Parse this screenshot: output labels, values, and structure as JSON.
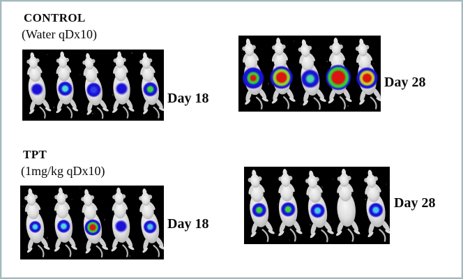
{
  "figure": {
    "border_color": "#a4b9bc",
    "background": "#ffffff",
    "panel_background": "#000000",
    "text_color": "#0a0a0a",
    "description": "Bioluminescence imaging of tumor-bearing mice, 5 mice per panel"
  },
  "signal_palette": {
    "low": "#1b12d8",
    "mid_cyan": "#49d8e0",
    "mid_green": "#35cc35",
    "mid_yellow": "#c8cc25",
    "high": "#dd1510"
  },
  "groups": [
    {
      "title": "CONTROL",
      "subtitle": "(Water qDx10)",
      "panels": [
        {
          "day_label": "Day 18",
          "mice": [
            {
              "signal": {
                "r": 10,
                "rings": [
                  "#1b12d8"
                ]
              }
            },
            {
              "signal": {
                "r": 11,
                "rings": [
                  "#1b12d8",
                  "#49e0d8"
                ]
              }
            },
            {
              "signal": {
                "r": 11,
                "rings": [
                  "#1b12d8",
                  "#2f3fe8"
                ]
              }
            },
            {
              "signal": {
                "r": 10,
                "rings": [
                  "#1b12d8"
                ]
              }
            },
            {
              "signal": {
                "r": 11,
                "rings": [
                  "#1b12d8",
                  "#3bd83b"
                ]
              }
            }
          ]
        },
        {
          "day_label": "Day 28",
          "mice": [
            {
              "signal": {
                "r": 16,
                "rings": [
                  "#1b12d8",
                  "#35cc35",
                  "#dd1510"
                ],
                "core": 0.2
              }
            },
            {
              "signal": {
                "r": 17,
                "rings": [
                  "#1b12d8",
                  "#8fd22a",
                  "#dd1510"
                ],
                "core": 0.38
              }
            },
            {
              "signal": {
                "r": 14,
                "rings": [
                  "#1b12d8",
                  "#45d8a0"
                ]
              }
            },
            {
              "signal": {
                "r": 19,
                "rings": [
                  "#1b12d8",
                  "#35cc35",
                  "#dd1510"
                ],
                "core": 0.45
              }
            },
            {
              "signal": {
                "r": 16,
                "rings": [
                  "#1b12d8",
                  "#c8cc25",
                  "#dd1510"
                ],
                "core": 0.33
              }
            }
          ]
        }
      ]
    },
    {
      "title": "TPT",
      "subtitle": "(1mg/kg qDx10)",
      "panels": [
        {
          "day_label": "Day 18",
          "mice": [
            {
              "signal": {
                "r": 9,
                "rings": [
                  "#1b12d8",
                  "#49d8e0"
                ]
              }
            },
            {
              "signal": {
                "r": 10,
                "rings": [
                  "#1b12d8",
                  "#49d8e0"
                ]
              }
            },
            {
              "signal": {
                "r": 12,
                "rings": [
                  "#1b12d8",
                  "#35cc35",
                  "#dd1510"
                ],
                "core": 0.3
              }
            },
            {
              "signal": {
                "r": 10,
                "rings": [
                  "#1b12d8"
                ]
              }
            },
            {
              "signal": {
                "r": 10,
                "rings": [
                  "#1b12d8",
                  "#4fc0e8"
                ]
              }
            }
          ]
        },
        {
          "day_label": "Day 28",
          "mice": [
            {
              "signal": {
                "r": 11,
                "rings": [
                  "#1b12d8",
                  "#3bd83b"
                ]
              }
            },
            {
              "signal": {
                "r": 11,
                "rings": [
                  "#1b12d8",
                  "#3bd83b"
                ]
              }
            },
            {
              "signal": {
                "r": 11,
                "rings": [
                  "#1b12d8",
                  "#45c8e8"
                ]
              }
            },
            {
              "signal": null
            },
            {
              "signal": {
                "r": 11,
                "rings": [
                  "#1b12d8",
                  "#45c8e8"
                ]
              }
            }
          ]
        }
      ]
    }
  ]
}
